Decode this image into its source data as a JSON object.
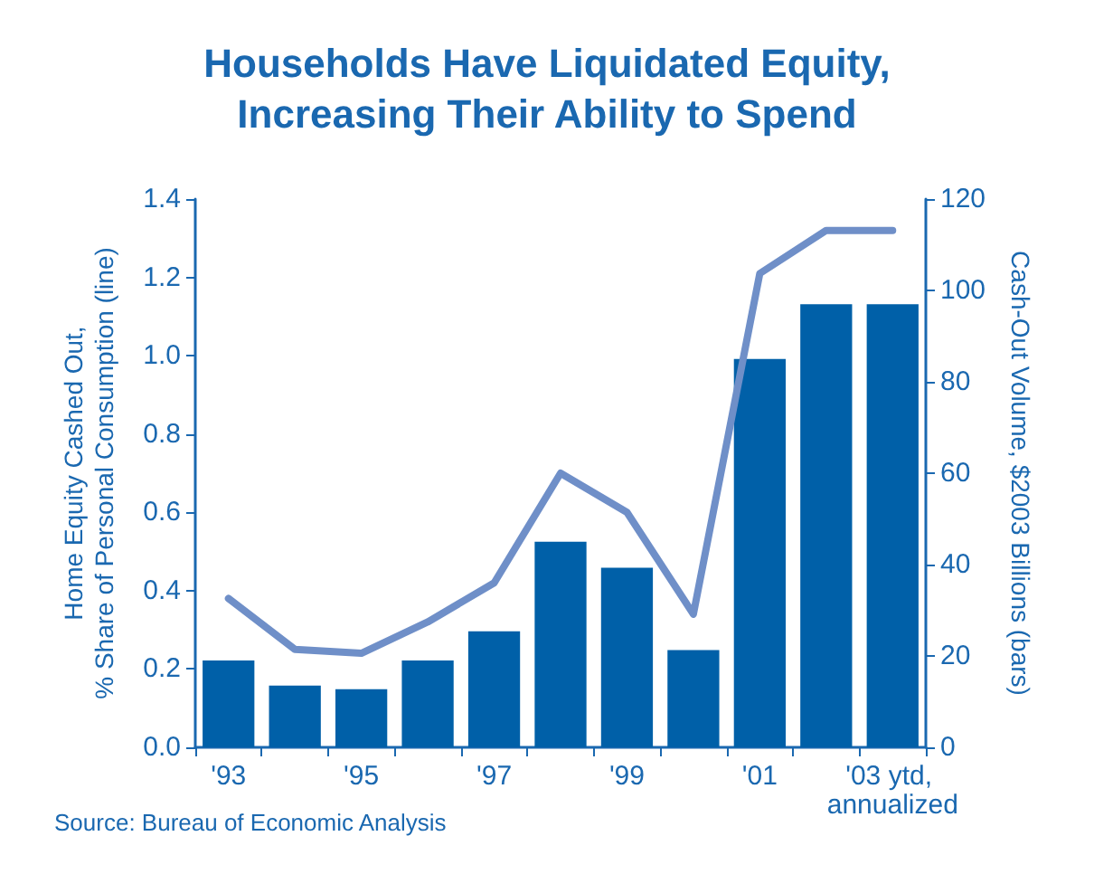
{
  "chart_data": {
    "type": "bar",
    "title": "Households Have Liquidated Equity,\nIncreasing Their Ability to Spend",
    "categories": [
      "'93",
      null,
      "'95",
      null,
      "'97",
      null,
      "'99",
      null,
      "'01",
      null,
      "'03 ytd, annualized"
    ],
    "series": [
      {
        "axis": "y2",
        "color": "#0060a8",
        "values": [
          19,
          13.5,
          12.7,
          19,
          25.4,
          45,
          39.3,
          21.3,
          85,
          97,
          97
        ]
      },
      {
        "type": "line",
        "color": "#6f8fc8",
        "values": [
          0.38,
          0.25,
          0.24,
          0.32,
          0.42,
          0.7,
          0.6,
          0.34,
          1.21,
          1.32,
          1.32
        ]
      }
    ],
    "ylabel": "Home Equity Cashed Out,\n% Share of Personal Consumption (line)",
    "y2label": "Cash-Out Volume, $2003 Billions (bars)",
    "ylim": [
      0,
      1.4
    ],
    "yticks": [
      {
        "value": 0,
        "label": "0.0"
      },
      0.2,
      0.4,
      0.6,
      0.8,
      {
        "value": 1,
        "label": "1.0"
      },
      1.2,
      1.4
    ],
    "y2lim": [
      0,
      120
    ],
    "y2ticks": [
      0,
      20,
      40,
      60,
      80,
      100,
      120
    ],
    "annotations": [
      "Source: Bureau of Economic Analysis"
    ],
    "grid": false,
    "marker": "none",
    "line_style": "solid"
  }
}
